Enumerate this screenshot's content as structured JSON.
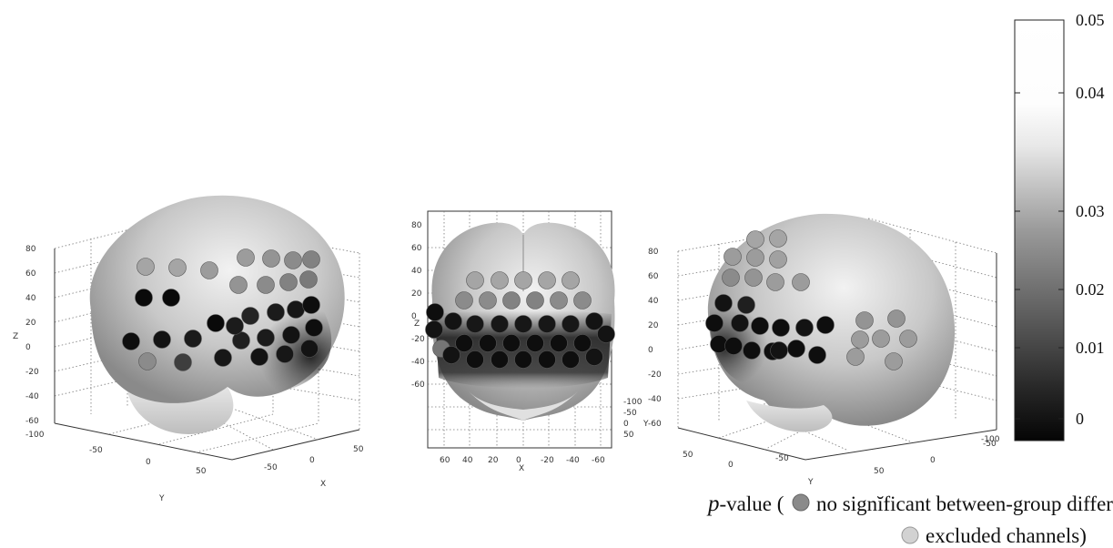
{
  "views": [
    {
      "id": "left",
      "z_axis": {
        "label": "Z",
        "ticks": [
          "80",
          "60",
          "40",
          "20",
          "0",
          "-20",
          "-40",
          "-60"
        ]
      },
      "bottom_axes": [
        {
          "label": "Y",
          "ticks": [
            "-100",
            "-50",
            "0",
            "50"
          ]
        },
        {
          "label": "X",
          "ticks": [
            "-50",
            "0",
            "50"
          ]
        }
      ],
      "channels": [
        {
          "x": 158,
          "y": 327,
          "p": 0.0
        },
        {
          "x": 188,
          "y": 327,
          "p": 0.0
        },
        {
          "x": 237,
          "y": 355,
          "p": 0.0
        },
        {
          "x": 144,
          "y": 375,
          "p": 0.001
        },
        {
          "x": 178,
          "y": 373,
          "p": 0.002
        },
        {
          "x": 212,
          "y": 372,
          "p": 0.004
        },
        {
          "x": 245,
          "y": 393,
          "p": 0.003
        },
        {
          "x": 162,
          "y": 397,
          "p": 0.03
        },
        {
          "x": 201,
          "y": 398,
          "p": 0.012
        },
        {
          "x": 275,
          "y": 347,
          "p": 0.006
        },
        {
          "x": 303,
          "y": 343,
          "p": 0.004
        },
        {
          "x": 325,
          "y": 340,
          "p": 0.003
        },
        {
          "x": 342,
          "y": 335,
          "p": 0.001
        },
        {
          "x": 265,
          "y": 374,
          "p": 0.005
        },
        {
          "x": 292,
          "y": 371,
          "p": 0.004
        },
        {
          "x": 320,
          "y": 368,
          "p": 0.002
        },
        {
          "x": 345,
          "y": 360,
          "p": 0.001
        },
        {
          "x": 285,
          "y": 392,
          "p": 0.002
        },
        {
          "x": 313,
          "y": 389,
          "p": 0.003
        },
        {
          "x": 340,
          "y": 383,
          "p": 0.002
        },
        {
          "x": 258,
          "y": 358,
          "p": 0.004
        },
        {
          "x": 160,
          "y": 293,
          "p": 0.036
        },
        {
          "x": 195,
          "y": 294,
          "p": 0.036
        },
        {
          "x": 230,
          "y": 297,
          "p": 0.034
        },
        {
          "x": 262,
          "y": 313,
          "p": 0.032
        },
        {
          "x": 292,
          "y": 313,
          "p": 0.03
        },
        {
          "x": 317,
          "y": 310,
          "p": 0.028
        },
        {
          "x": 339,
          "y": 307,
          "p": 0.026
        },
        {
          "x": 270,
          "y": 283,
          "p": 0.034
        },
        {
          "x": 298,
          "y": 284,
          "p": 0.032
        },
        {
          "x": 322,
          "y": 286,
          "p": 0.03
        },
        {
          "x": 342,
          "y": 285,
          "p": 0.028
        }
      ]
    },
    {
      "id": "middle",
      "z_axis": {
        "label": "Z",
        "ticks": [
          "80",
          "60",
          "40",
          "20",
          "0",
          "-20",
          "-40",
          "-60"
        ]
      },
      "bottom_axes": [
        {
          "label": "X",
          "ticks": [
            "60",
            "40",
            "20",
            "0",
            "-20",
            "-40",
            "-60"
          ]
        },
        {
          "label": "Y",
          "ticks": [
            "-100",
            "-50",
            "0",
            "50"
          ]
        }
      ],
      "channels": [
        {
          "x": 478,
          "y": 343,
          "p": 0.001
        },
        {
          "x": 477,
          "y": 362,
          "p": 0.002
        },
        {
          "x": 485,
          "y": 383,
          "p": 0.025
        },
        {
          "x": 498,
          "y": 353,
          "p": 0.002
        },
        {
          "x": 522,
          "y": 356,
          "p": 0.003
        },
        {
          "x": 549,
          "y": 356,
          "p": 0.003
        },
        {
          "x": 575,
          "y": 356,
          "p": 0.003
        },
        {
          "x": 601,
          "y": 356,
          "p": 0.003
        },
        {
          "x": 627,
          "y": 356,
          "p": 0.003
        },
        {
          "x": 653,
          "y": 353,
          "p": 0.002
        },
        {
          "x": 510,
          "y": 377,
          "p": 0.001
        },
        {
          "x": 536,
          "y": 377,
          "p": 0.001
        },
        {
          "x": 562,
          "y": 377,
          "p": 0.001
        },
        {
          "x": 588,
          "y": 377,
          "p": 0.001
        },
        {
          "x": 614,
          "y": 377,
          "p": 0.001
        },
        {
          "x": 640,
          "y": 377,
          "p": 0.001
        },
        {
          "x": 666,
          "y": 367,
          "p": 0.002
        },
        {
          "x": 496,
          "y": 390,
          "p": 0.002
        },
        {
          "x": 522,
          "y": 395,
          "p": 0.001
        },
        {
          "x": 549,
          "y": 395,
          "p": 0.001
        },
        {
          "x": 575,
          "y": 395,
          "p": 0.001
        },
        {
          "x": 601,
          "y": 395,
          "p": 0.001
        },
        {
          "x": 627,
          "y": 395,
          "p": 0.001
        },
        {
          "x": 653,
          "y": 392,
          "p": 0.002
        },
        {
          "x": 510,
          "y": 330,
          "p": 0.03
        },
        {
          "x": 536,
          "y": 330,
          "p": 0.03
        },
        {
          "x": 562,
          "y": 330,
          "p": 0.028
        },
        {
          "x": 588,
          "y": 330,
          "p": 0.028
        },
        {
          "x": 614,
          "y": 330,
          "p": 0.03
        },
        {
          "x": 640,
          "y": 330,
          "p": 0.03
        },
        {
          "x": 522,
          "y": 308,
          "p": 0.036
        },
        {
          "x": 549,
          "y": 308,
          "p": 0.036
        },
        {
          "x": 575,
          "y": 308,
          "p": 0.036
        },
        {
          "x": 601,
          "y": 308,
          "p": 0.036
        },
        {
          "x": 627,
          "y": 308,
          "p": 0.036
        }
      ]
    },
    {
      "id": "right",
      "z_axis": {
        "label": "",
        "ticks": [
          "80",
          "60",
          "40",
          "20",
          "0",
          "-20",
          "-40",
          "-60"
        ]
      },
      "bottom_axes": [
        {
          "label": "Y",
          "ticks": [
            "50",
            "0",
            "-50",
            "-100"
          ]
        },
        {
          "label": "",
          "ticks": [
            "50",
            "0",
            "-50"
          ]
        }
      ],
      "channels": [
        {
          "x": 795,
          "y": 333,
          "p": 0.002
        },
        {
          "x": 785,
          "y": 355,
          "p": 0.001
        },
        {
          "x": 790,
          "y": 378,
          "p": 0.001
        },
        {
          "x": 813,
          "y": 355,
          "p": 0.002
        },
        {
          "x": 806,
          "y": 380,
          "p": 0.001
        },
        {
          "x": 835,
          "y": 358,
          "p": 0.001
        },
        {
          "x": 826,
          "y": 385,
          "p": 0.001
        },
        {
          "x": 858,
          "y": 360,
          "p": 0.001
        },
        {
          "x": 849,
          "y": 386,
          "p": 0.001
        },
        {
          "x": 884,
          "y": 360,
          "p": 0.002
        },
        {
          "x": 875,
          "y": 383,
          "p": 0.001
        },
        {
          "x": 907,
          "y": 357,
          "p": 0.001
        },
        {
          "x": 898,
          "y": 390,
          "p": 0.001
        },
        {
          "x": 820,
          "y": 335,
          "p": 0.005
        },
        {
          "x": 856,
          "y": 385,
          "p": 0.002
        },
        {
          "x": 950,
          "y": 352,
          "p": 0.032
        },
        {
          "x": 985,
          "y": 350,
          "p": 0.032
        },
        {
          "x": 945,
          "y": 373,
          "p": 0.034
        },
        {
          "x": 968,
          "y": 372,
          "p": 0.034
        },
        {
          "x": 998,
          "y": 372,
          "p": 0.034
        },
        {
          "x": 940,
          "y": 392,
          "p": 0.034
        },
        {
          "x": 982,
          "y": 397,
          "p": 0.034
        },
        {
          "x": 803,
          "y": 305,
          "p": 0.03
        },
        {
          "x": 828,
          "y": 305,
          "p": 0.032
        },
        {
          "x": 852,
          "y": 310,
          "p": 0.034
        },
        {
          "x": 880,
          "y": 310,
          "p": 0.034
        },
        {
          "x": 805,
          "y": 282,
          "p": 0.034
        },
        {
          "x": 830,
          "y": 283,
          "p": 0.034
        },
        {
          "x": 855,
          "y": 285,
          "p": 0.035
        },
        {
          "x": 830,
          "y": 263,
          "p": 0.036
        },
        {
          "x": 855,
          "y": 262,
          "p": 0.036
        }
      ]
    }
  ],
  "colorbar": {
    "ticks": [
      "0.05",
      "0.04",
      "0.03",
      "0.02",
      "0.01",
      "0"
    ],
    "min": 0,
    "max": 0.05
  },
  "legend": {
    "p_symbol": "p",
    "line1_text": "-value (",
    "nonsig_label": "no signĭficant between-group  difference",
    "excluded_label": "excluded channels)",
    "nonsig_color": "#8a8a8a",
    "excluded_color": "#d2d2d2"
  }
}
